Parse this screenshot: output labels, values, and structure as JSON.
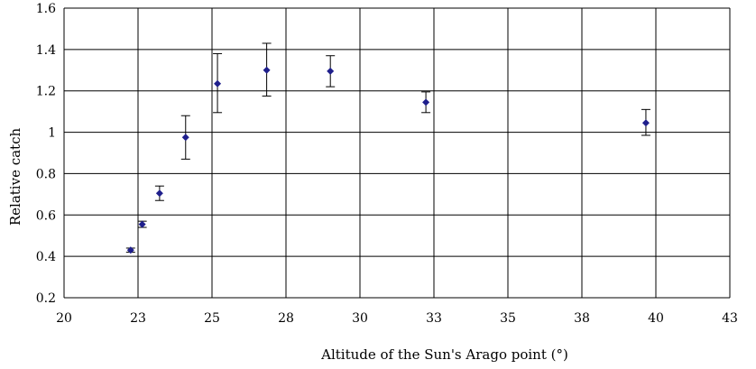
{
  "chart_data": {
    "type": "scatter",
    "title": "",
    "xlabel": "Altitude of the Sun's Arago point (°)",
    "ylabel": "Relative catch",
    "xlim": [
      20,
      43
    ],
    "ylim": [
      0.2,
      1.6
    ],
    "x_ticks": [
      "20",
      "23",
      "25",
      "28",
      "30",
      "33",
      "35",
      "38",
      "40",
      "43"
    ],
    "y_ticks": [
      "0.2",
      "0.4",
      "0.6",
      "0.8",
      "1",
      "1.2",
      "1.4",
      "1.6"
    ],
    "grid": true,
    "legend": "none",
    "marker_color": "#1f1f8c",
    "series": [
      {
        "points": [
          {
            "x": 22.3,
            "y": 0.43,
            "err_low": 0.01,
            "err_high": 0.01
          },
          {
            "x": 22.7,
            "y": 0.555,
            "err_low": 0.015,
            "err_high": 0.015
          },
          {
            "x": 23.3,
            "y": 0.705,
            "err_low": 0.035,
            "err_high": 0.035
          },
          {
            "x": 24.2,
            "y": 0.975,
            "err_low": 0.105,
            "err_high": 0.105
          },
          {
            "x": 25.3,
            "y": 1.235,
            "err_low": 0.14,
            "err_high": 0.145
          },
          {
            "x": 27.0,
            "y": 1.3,
            "err_low": 0.125,
            "err_high": 0.13
          },
          {
            "x": 29.2,
            "y": 1.295,
            "err_low": 0.075,
            "err_high": 0.075
          },
          {
            "x": 32.5,
            "y": 1.145,
            "err_low": 0.05,
            "err_high": 0.05
          },
          {
            "x": 40.1,
            "y": 1.045,
            "err_low": 0.06,
            "err_high": 0.065
          }
        ]
      }
    ]
  }
}
